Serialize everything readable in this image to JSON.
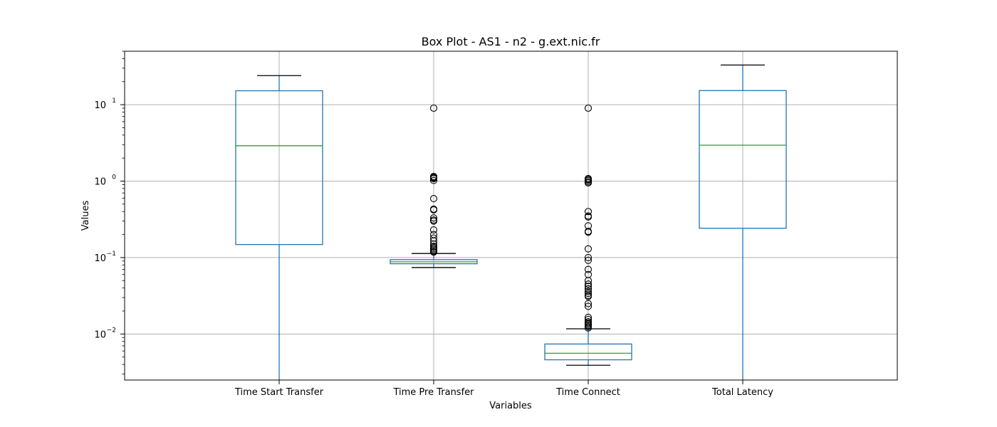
{
  "chart_data": {
    "type": "box",
    "title": "Box Plot - AS1 - n2 - g.ext.nic.fr",
    "xlabel": "Variables",
    "ylabel": "Values",
    "yscale": "log",
    "ylim": [
      0.0025,
      50
    ],
    "y_ticks": [
      {
        "value": 0.01,
        "base": "10",
        "exp": "−2"
      },
      {
        "value": 0.1,
        "base": "10",
        "exp": "−1"
      },
      {
        "value": 1,
        "base": "10",
        "exp": "0"
      },
      {
        "value": 10,
        "base": "10",
        "exp": "1"
      }
    ],
    "grid": true,
    "colors": {
      "box": "#1f77b4",
      "median": "#2ca02c",
      "whisker_cap": "#000000",
      "flier": "#000000",
      "grid": "#b0b0b0"
    },
    "categories": [
      "Time Start Transfer",
      "Time Pre Transfer",
      "Time Connect",
      "Total Latency"
    ],
    "boxes": [
      {
        "name": "Time Start Transfer",
        "whisker_low": 0.0025,
        "q1": 0.148,
        "median": 2.9,
        "q3": 15.2,
        "whisker_high": 24.0,
        "outliers": []
      },
      {
        "name": "Time Pre Transfer",
        "whisker_low": 0.074,
        "q1": 0.083,
        "median": 0.088,
        "q3": 0.094,
        "whisker_high": 0.113,
        "outliers": [
          9.0,
          1.15,
          1.12,
          1.1,
          1.08,
          1.02,
          0.59,
          0.43,
          0.42,
          0.33,
          0.31,
          0.3,
          0.23,
          0.2,
          0.18,
          0.165,
          0.15,
          0.14,
          0.135,
          0.13,
          0.125,
          0.12,
          0.118
        ]
      },
      {
        "name": "Time Connect",
        "whisker_low": 0.0039,
        "q1": 0.0046,
        "median": 0.0056,
        "q3": 0.0074,
        "whisker_high": 0.0117,
        "outliers": [
          9.0,
          1.08,
          1.05,
          1.02,
          0.98,
          0.95,
          0.4,
          0.35,
          0.34,
          0.26,
          0.22,
          0.215,
          0.13,
          0.1,
          0.092,
          0.07,
          0.06,
          0.05,
          0.045,
          0.042,
          0.039,
          0.036,
          0.034,
          0.032,
          0.031,
          0.025,
          0.023,
          0.0165,
          0.0155,
          0.0145,
          0.014,
          0.0135,
          0.013,
          0.0125,
          0.012
        ]
      },
      {
        "name": "Total Latency",
        "whisker_low": 0.0025,
        "q1": 0.242,
        "median": 2.95,
        "q3": 15.3,
        "whisker_high": 33.0,
        "outliers": []
      }
    ]
  }
}
